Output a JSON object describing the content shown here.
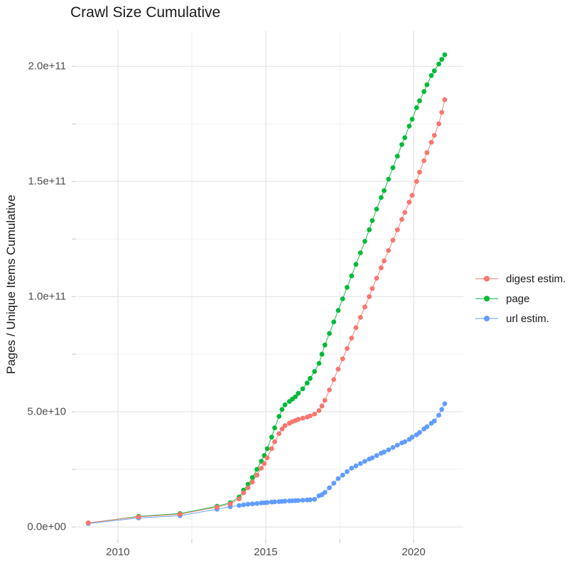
{
  "chart_data": {
    "type": "line",
    "title": "Crawl Size Cumulative",
    "xlabel": "",
    "ylabel": "Pages / Unique Items Cumulative",
    "xlim": [
      2008.61,
      2021.68
    ],
    "ylim": [
      -4900000000.0,
      215500000000.0
    ],
    "grid": true,
    "legend_position": "right",
    "background_color": "#ffffff",
    "major_grid_color": "#e4e4e4",
    "minor_grid_color": "#efefef",
    "tick_color": "#c6c6c6",
    "x_axis": {
      "major_ticks": [
        2010,
        2015,
        2020
      ],
      "minor_ticks": [
        2012.5,
        2017.5
      ],
      "tick_labels": [
        "2010",
        "2015",
        "2020"
      ]
    },
    "y_axis": {
      "major_ticks": [
        0,
        50000000000.0,
        100000000000.0,
        150000000000.0,
        200000000000.0
      ],
      "minor_ticks": [
        25000000000.0,
        75000000000.0,
        125000000000.0,
        175000000000.0
      ],
      "tick_labels": [
        "0.0e+00",
        "5.0e+10",
        "1.0e+11",
        "1.5e+11",
        "2.0e+11"
      ]
    },
    "series": [
      {
        "name": "digest estim.",
        "color": "#F8766D",
        "points": [
          [
            2009.0,
            1800000000.0
          ],
          [
            2010.7,
            4400000000.0
          ],
          [
            2012.1,
            5500000000.0
          ],
          [
            2013.35,
            8600000000.0
          ],
          [
            2013.8,
            10000000000.0
          ],
          [
            2014.1,
            12200000000.0
          ],
          [
            2014.25,
            14800000000.0
          ],
          [
            2014.4,
            17000000000.0
          ],
          [
            2014.55,
            19500000000.0
          ],
          [
            2014.7,
            22500000000.0
          ],
          [
            2014.85,
            25500000000.0
          ],
          [
            2014.95,
            27500000000.0
          ],
          [
            2015.05,
            30000000000.0
          ],
          [
            2015.2,
            34000000000.0
          ],
          [
            2015.3,
            37000000000.0
          ],
          [
            2015.45,
            40500000000.0
          ],
          [
            2015.55,
            42500000000.0
          ],
          [
            2015.65,
            44000000000.0
          ],
          [
            2015.8,
            45000000000.0
          ],
          [
            2015.9,
            45700000000.0
          ],
          [
            2016.0,
            46200000000.0
          ],
          [
            2016.1,
            46700000000.0
          ],
          [
            2016.25,
            47200000000.0
          ],
          [
            2016.4,
            47700000000.0
          ],
          [
            2016.5,
            48200000000.0
          ],
          [
            2016.65,
            49000000000.0
          ],
          [
            2016.8,
            50500000000.0
          ],
          [
            2016.9,
            52500000000.0
          ],
          [
            2017.0,
            55000000000.0
          ],
          [
            2017.15,
            59500000000.0
          ],
          [
            2017.3,
            64000000000.0
          ],
          [
            2017.45,
            68500000000.0
          ],
          [
            2017.6,
            73000000000.0
          ],
          [
            2017.75,
            77500000000.0
          ],
          [
            2017.9,
            82000000000.0
          ],
          [
            2018.05,
            86500000000.0
          ],
          [
            2018.2,
            91000000000.0
          ],
          [
            2018.35,
            95500000000.0
          ],
          [
            2018.5,
            100000000000.0
          ],
          [
            2018.6,
            103500000000.0
          ],
          [
            2018.75,
            108000000000.0
          ],
          [
            2018.9,
            112500000000.0
          ],
          [
            2019.0,
            115500000000.0
          ],
          [
            2019.15,
            120000000000.0
          ],
          [
            2019.3,
            124500000000.0
          ],
          [
            2019.45,
            129000000000.0
          ],
          [
            2019.6,
            133500000000.0
          ],
          [
            2019.7,
            136500000000.0
          ],
          [
            2019.85,
            141000000000.0
          ],
          [
            2019.95,
            144000000000.0
          ],
          [
            2020.1,
            150000000000.0
          ],
          [
            2020.2,
            154000000000.0
          ],
          [
            2020.35,
            159000000000.0
          ],
          [
            2020.45,
            162500000000.0
          ],
          [
            2020.6,
            167000000000.0
          ],
          [
            2020.7,
            170000000000.0
          ],
          [
            2020.85,
            175000000000.0
          ],
          [
            2020.95,
            180000000000.0
          ],
          [
            2021.05,
            185500000000.0
          ]
        ]
      },
      {
        "name": "page",
        "color": "#00BA38",
        "points": [
          [
            2009.0,
            1700000000.0
          ],
          [
            2010.7,
            4600000000.0
          ],
          [
            2012.1,
            5800000000.0
          ],
          [
            2013.35,
            9000000000.0
          ],
          [
            2013.8,
            10500000000.0
          ],
          [
            2014.1,
            13000000000.0
          ],
          [
            2014.25,
            16000000000.0
          ],
          [
            2014.4,
            18500000000.0
          ],
          [
            2014.55,
            21500000000.0
          ],
          [
            2014.7,
            25000000000.0
          ],
          [
            2014.85,
            28500000000.0
          ],
          [
            2014.95,
            31000000000.0
          ],
          [
            2015.05,
            34000000000.0
          ],
          [
            2015.2,
            39000000000.0
          ],
          [
            2015.3,
            43000000000.0
          ],
          [
            2015.45,
            48000000000.0
          ],
          [
            2015.55,
            51000000000.0
          ],
          [
            2015.65,
            53000000000.0
          ],
          [
            2015.8,
            54500000000.0
          ],
          [
            2015.9,
            55500000000.0
          ],
          [
            2016.0,
            56500000000.0
          ],
          [
            2016.1,
            58000000000.0
          ],
          [
            2016.25,
            60000000000.0
          ],
          [
            2016.4,
            62500000000.0
          ],
          [
            2016.5,
            64500000000.0
          ],
          [
            2016.65,
            67500000000.0
          ],
          [
            2016.8,
            71000000000.0
          ],
          [
            2016.9,
            75000000000.0
          ],
          [
            2017.0,
            79000000000.0
          ],
          [
            2017.15,
            84000000000.0
          ],
          [
            2017.3,
            89000000000.0
          ],
          [
            2017.45,
            94000000000.0
          ],
          [
            2017.6,
            99000000000.0
          ],
          [
            2017.75,
            104000000000.0
          ],
          [
            2017.9,
            109000000000.0
          ],
          [
            2018.05,
            114000000000.0
          ],
          [
            2018.2,
            119000000000.0
          ],
          [
            2018.35,
            124000000000.0
          ],
          [
            2018.5,
            129000000000.0
          ],
          [
            2018.6,
            133000000000.0
          ],
          [
            2018.75,
            138000000000.0
          ],
          [
            2018.9,
            143000000000.0
          ],
          [
            2019.0,
            146000000000.0
          ],
          [
            2019.15,
            151000000000.0
          ],
          [
            2019.3,
            156000000000.0
          ],
          [
            2019.45,
            161000000000.0
          ],
          [
            2019.6,
            166000000000.0
          ],
          [
            2019.7,
            169000000000.0
          ],
          [
            2019.85,
            174000000000.0
          ],
          [
            2019.95,
            177000000000.0
          ],
          [
            2020.1,
            182000000000.0
          ],
          [
            2020.2,
            185000000000.0
          ],
          [
            2020.35,
            189000000000.0
          ],
          [
            2020.45,
            192000000000.0
          ],
          [
            2020.6,
            196000000000.0
          ],
          [
            2020.7,
            198000000000.0
          ],
          [
            2020.85,
            201000000000.0
          ],
          [
            2020.95,
            203000000000.0
          ],
          [
            2021.05,
            205000000000.0
          ]
        ]
      },
      {
        "name": "url estim.",
        "color": "#619CFF",
        "points": [
          [
            2009.0,
            1500000000.0
          ],
          [
            2010.7,
            3900000000.0
          ],
          [
            2012.1,
            4900000000.0
          ],
          [
            2013.35,
            7700000000.0
          ],
          [
            2013.8,
            8800000000.0
          ],
          [
            2014.1,
            9300000000.0
          ],
          [
            2014.25,
            9600000000.0
          ],
          [
            2014.4,
            9850000000.0
          ],
          [
            2014.55,
            10000000000.0
          ],
          [
            2014.7,
            10200000000.0
          ],
          [
            2014.85,
            10400000000.0
          ],
          [
            2014.95,
            10500000000.0
          ],
          [
            2015.05,
            10600000000.0
          ],
          [
            2015.2,
            10800000000.0
          ],
          [
            2015.3,
            10900000000.0
          ],
          [
            2015.45,
            11000000000.0
          ],
          [
            2015.55,
            11100000000.0
          ],
          [
            2015.65,
            11200000000.0
          ],
          [
            2015.8,
            11300000000.0
          ],
          [
            2015.9,
            11350000000.0
          ],
          [
            2016.0,
            11400000000.0
          ],
          [
            2016.1,
            11500000000.0
          ],
          [
            2016.25,
            11600000000.0
          ],
          [
            2016.4,
            11700000000.0
          ],
          [
            2016.5,
            11800000000.0
          ],
          [
            2016.65,
            12000000000.0
          ],
          [
            2016.8,
            13500000000.0
          ],
          [
            2016.9,
            14000000000.0
          ],
          [
            2017.0,
            15000000000.0
          ],
          [
            2017.15,
            17000000000.0
          ],
          [
            2017.3,
            19000000000.0
          ],
          [
            2017.45,
            21000000000.0
          ],
          [
            2017.6,
            22500000000.0
          ],
          [
            2017.75,
            24000000000.0
          ],
          [
            2017.9,
            25500000000.0
          ],
          [
            2018.05,
            26500000000.0
          ],
          [
            2018.2,
            27500000000.0
          ],
          [
            2018.35,
            28500000000.0
          ],
          [
            2018.5,
            29500000000.0
          ],
          [
            2018.6,
            30000000000.0
          ],
          [
            2018.75,
            31000000000.0
          ],
          [
            2018.9,
            32000000000.0
          ],
          [
            2019.0,
            32500000000.0
          ],
          [
            2019.15,
            33500000000.0
          ],
          [
            2019.3,
            34500000000.0
          ],
          [
            2019.45,
            35500000000.0
          ],
          [
            2019.6,
            36500000000.0
          ],
          [
            2019.7,
            37000000000.0
          ],
          [
            2019.85,
            38000000000.0
          ],
          [
            2019.95,
            39000000000.0
          ],
          [
            2020.1,
            40000000000.0
          ],
          [
            2020.2,
            41000000000.0
          ],
          [
            2020.35,
            42500000000.0
          ],
          [
            2020.45,
            43500000000.0
          ],
          [
            2020.6,
            45000000000.0
          ],
          [
            2020.7,
            46000000000.0
          ],
          [
            2020.85,
            48500000000.0
          ],
          [
            2020.95,
            51000000000.0
          ],
          [
            2021.05,
            53500000000.0
          ]
        ]
      }
    ]
  }
}
